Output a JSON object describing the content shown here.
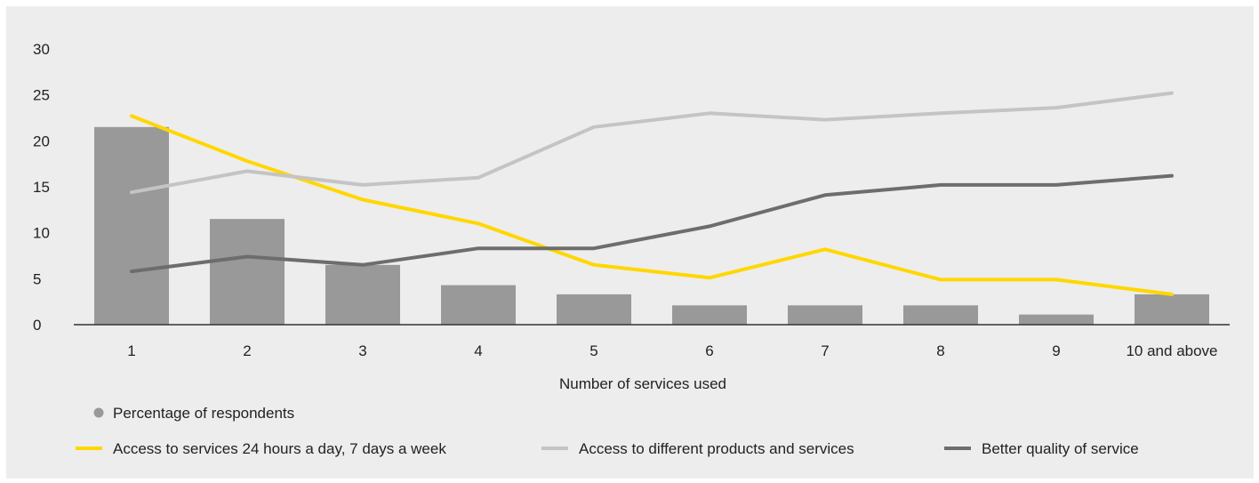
{
  "chart_data": {
    "type": "bar",
    "xlabel": "Number of services used",
    "ylabel": "",
    "ylim": [
      0,
      30
    ],
    "yticks": [
      0,
      5,
      10,
      15,
      20,
      25,
      30
    ],
    "grid": false,
    "legend_position": "bottom",
    "categories": [
      "1",
      "2",
      "3",
      "4",
      "5",
      "6",
      "7",
      "8",
      "9",
      "10 and above"
    ],
    "series": [
      {
        "name": "Percentage of respondents",
        "type": "bar",
        "color": "#999999",
        "values": [
          21.5,
          11.5,
          6.5,
          4.3,
          3.3,
          2.1,
          2.1,
          2.1,
          1.1,
          3.3
        ]
      },
      {
        "name": "Access to services 24 hours a day, 7 days a week",
        "type": "line",
        "color": "#ffd700",
        "values": [
          22.7,
          17.8,
          13.6,
          11.0,
          6.5,
          5.1,
          8.2,
          4.9,
          4.9,
          3.3
        ]
      },
      {
        "name": "Access to different products and services",
        "type": "line",
        "color": "#c4c4c4",
        "values": [
          14.4,
          16.7,
          15.2,
          16.0,
          21.5,
          23.0,
          22.3,
          23.0,
          23.6,
          25.2
        ]
      },
      {
        "name": "Better quality of service",
        "type": "line",
        "color": "#6d6d6d",
        "values": [
          5.8,
          7.4,
          6.5,
          8.3,
          8.3,
          10.7,
          14.1,
          15.2,
          15.2,
          16.2
        ]
      }
    ]
  }
}
